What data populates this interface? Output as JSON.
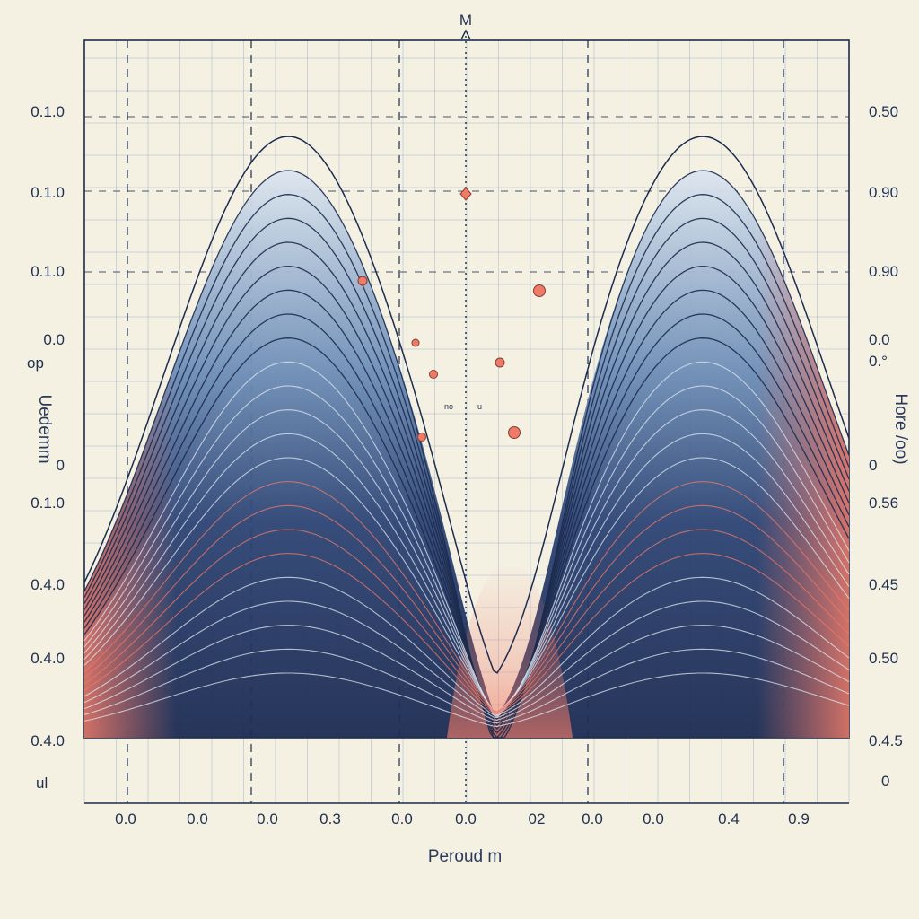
{
  "chart_data": {
    "type": "area",
    "title": "",
    "top_label": "M",
    "xlabel": "Peroud m",
    "ylabel_left": "Uedemm",
    "ylabel_right": "Hore /oo)",
    "x_tick_labels": [
      "0.0",
      "0.0",
      "0.0",
      "0.3",
      "0.0",
      "0.0",
      "02",
      "0.0",
      "0.0",
      "0.4",
      "0.9"
    ],
    "x_corner_left": "ul",
    "x_corner_right": "0",
    "y_ticks_left": [
      "0.1.0",
      "0.1.0",
      "0.1.0",
      "0.0",
      "0",
      "0.1.0",
      "0.4.0",
      "0.4.0",
      "0.4.0"
    ],
    "y_ticks_right": [
      "0.50",
      "0.90",
      "0.90",
      "0.0",
      "0",
      "0.56",
      "0.45",
      "0.50",
      "0.4.5"
    ],
    "extra_left": "op",
    "extra_right": "0.°",
    "center_note": "no",
    "center_note2": "u",
    "grid": true,
    "layers": 22,
    "peaks": [
      0.29,
      0.75
    ],
    "trough": 0.5,
    "colors": {
      "background": "#f4f1e3",
      "grid": "#8fa0bd",
      "dark": "#22335c",
      "mid": "#4a6a9a",
      "light": "#c9d7e6",
      "accent": "#ee7a68",
      "line": "#1c2b4e"
    }
  }
}
